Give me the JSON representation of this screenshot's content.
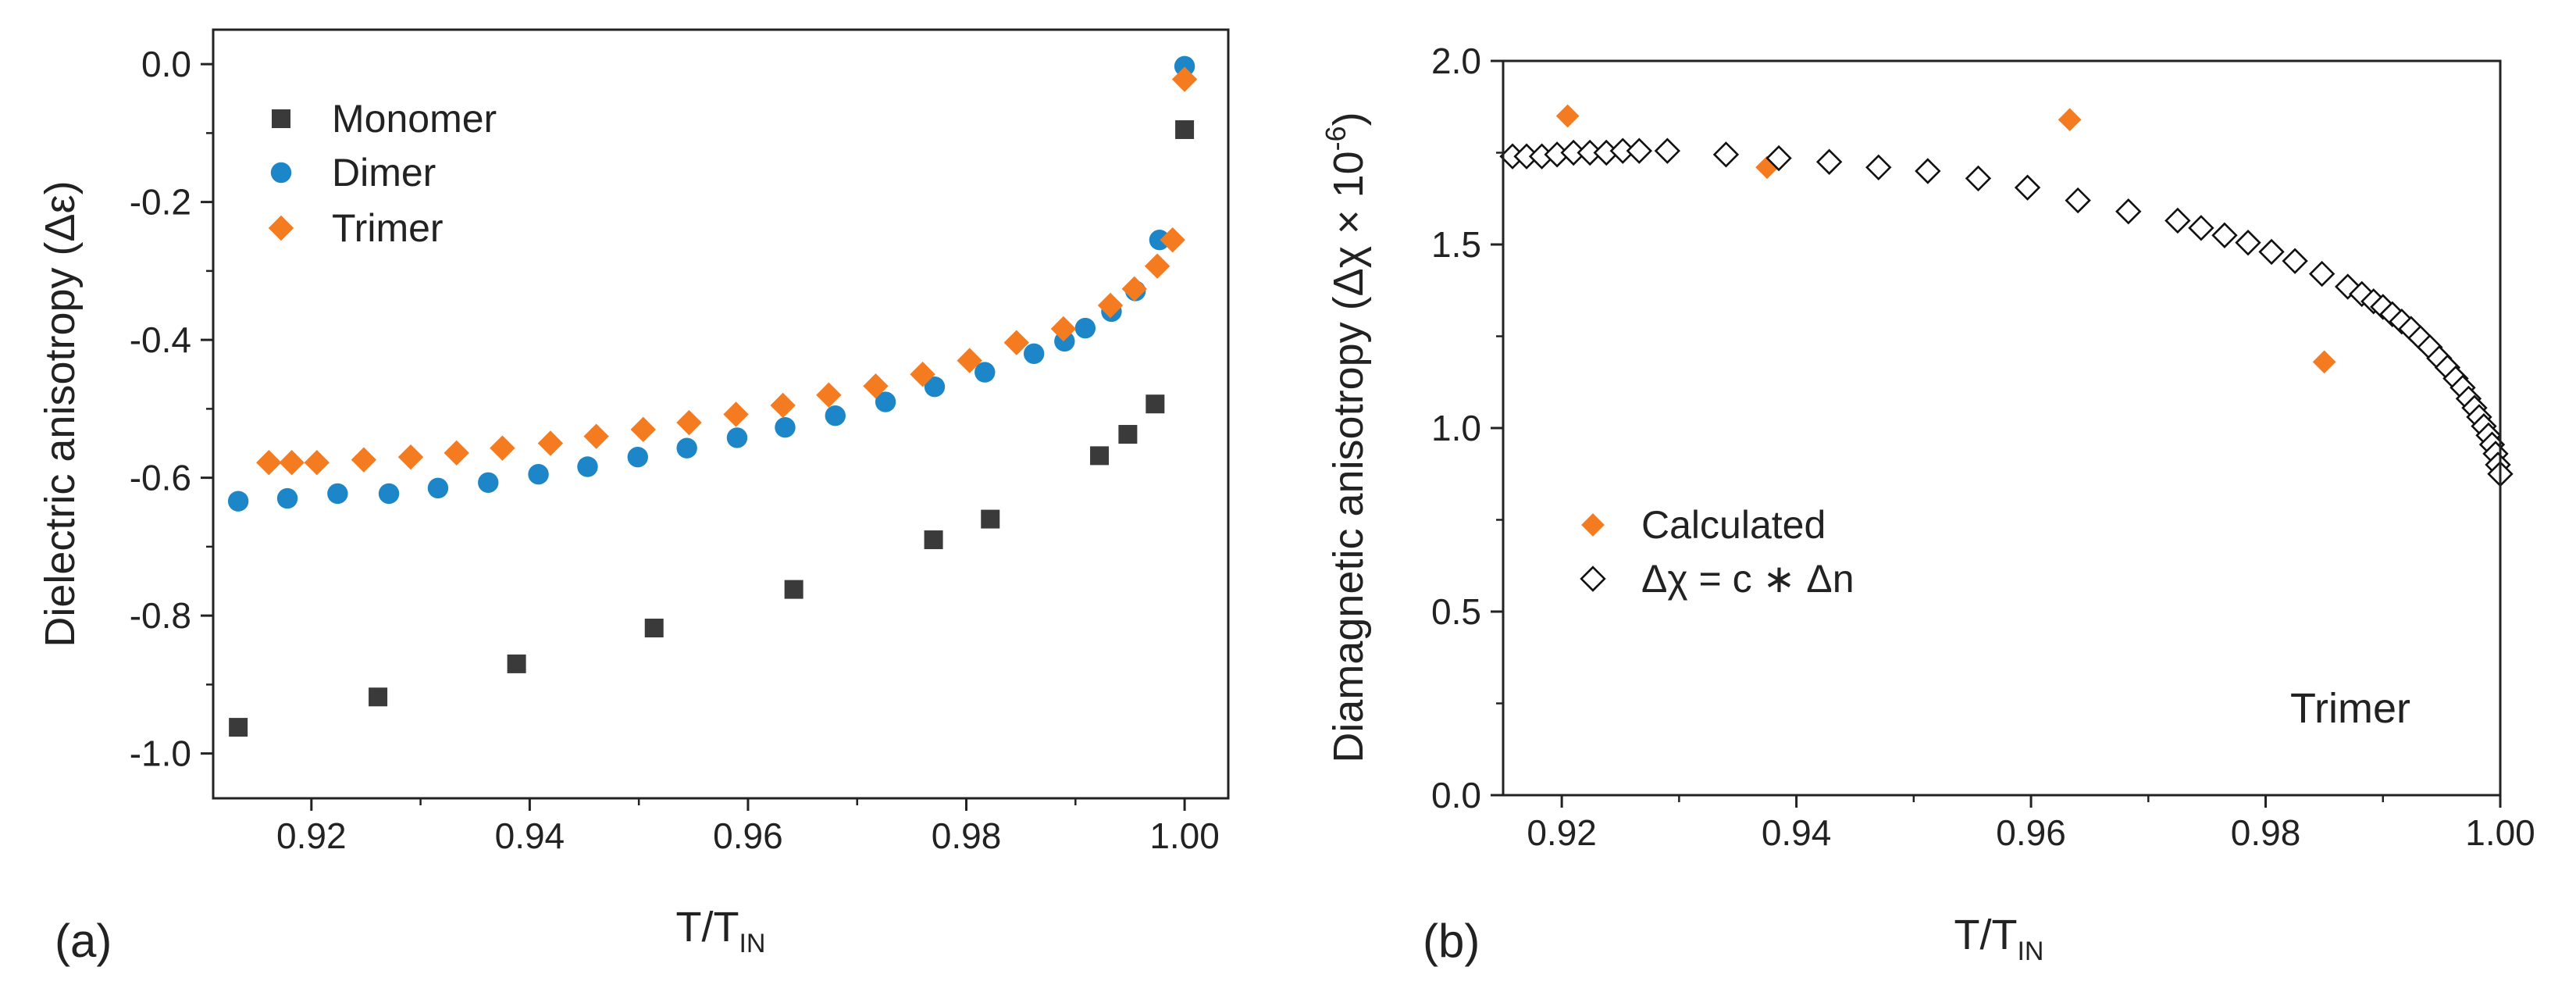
{
  "chart_data": [
    {
      "type": "scatter",
      "panel_label": "(a)",
      "xlabel_main": "T/T",
      "xlabel_sub": "IN",
      "ylabel": "Dielectric anisotropy (Δε)",
      "xlim": [
        0.911,
        1.004
      ],
      "ylim": [
        -1.065,
        0.05
      ],
      "xticks": [
        0.92,
        0.94,
        0.96,
        0.98,
        1.0
      ],
      "xtick_labels": [
        "0.92",
        "0.94",
        "0.96",
        "0.98",
        "1.00"
      ],
      "yticks": [
        -1.0,
        -0.8,
        -0.6,
        -0.4,
        -0.2,
        0.0
      ],
      "ytick_labels": [
        "-1.0",
        "-0.8",
        "-0.6",
        "-0.4",
        "-0.2",
        "0.0"
      ],
      "legend_position": "top-left",
      "series": [
        {
          "name": "Monomer",
          "marker": "square",
          "color": "#3a3a3a",
          "x": [
            0.9133,
            0.9261,
            0.9388,
            0.9514,
            0.9642,
            0.977,
            0.9822,
            0.9922,
            0.9948,
            0.9973,
            1.0
          ],
          "y": [
            -0.962,
            -0.918,
            -0.87,
            -0.818,
            -0.762,
            -0.69,
            -0.66,
            -0.568,
            -0.537,
            -0.493,
            -0.095
          ]
        },
        {
          "name": "Dimer",
          "marker": "circle",
          "color": "#1c86c8",
          "x": [
            0.9133,
            0.9178,
            0.9224,
            0.9271,
            0.9316,
            0.9362,
            0.9408,
            0.9453,
            0.9499,
            0.9544,
            0.959,
            0.9634,
            0.968,
            0.9726,
            0.9771,
            0.9817,
            0.9862,
            0.989,
            0.9909,
            0.9933,
            0.9955,
            0.9977,
            1.0
          ],
          "y": [
            -0.634,
            -0.63,
            -0.623,
            -0.623,
            -0.615,
            -0.607,
            -0.595,
            -0.584,
            -0.57,
            -0.557,
            -0.542,
            -0.527,
            -0.51,
            -0.49,
            -0.468,
            -0.447,
            -0.42,
            -0.402,
            -0.383,
            -0.359,
            -0.329,
            -0.255,
            -0.003
          ]
        },
        {
          "name": "Trimer",
          "marker": "diamond",
          "color": "#f47b20",
          "x": [
            0.9161,
            0.9182,
            0.9205,
            0.9248,
            0.9291,
            0.9333,
            0.9375,
            0.9419,
            0.9461,
            0.9504,
            0.9546,
            0.9589,
            0.9632,
            0.9674,
            0.9717,
            0.976,
            0.9803,
            0.9846,
            0.9889,
            0.9932,
            0.9954,
            0.9975,
            0.9989,
            1.0
          ],
          "y": [
            -0.578,
            -0.578,
            -0.578,
            -0.574,
            -0.57,
            -0.564,
            -0.557,
            -0.55,
            -0.54,
            -0.53,
            -0.52,
            -0.508,
            -0.495,
            -0.48,
            -0.467,
            -0.45,
            -0.43,
            -0.404,
            -0.384,
            -0.35,
            -0.326,
            -0.293,
            -0.255,
            -0.022
          ]
        }
      ]
    },
    {
      "type": "scatter",
      "panel_label": "(b)",
      "xlabel_main": "T/T",
      "xlabel_sub": "IN",
      "ylabel_main": "Diamagnetic anisotropy (Δχ × 10",
      "ylabel_sup": "-6",
      "ylabel_end": ")",
      "xlim": [
        0.915,
        1.0
      ],
      "ylim": [
        0.0,
        2.0
      ],
      "xticks": [
        0.92,
        0.94,
        0.96,
        0.98,
        1.0
      ],
      "xtick_labels": [
        "0.92",
        "0.94",
        "0.96",
        "0.98",
        "1.00"
      ],
      "yticks": [
        0.0,
        0.5,
        1.0,
        1.5,
        2.0
      ],
      "ytick_labels": [
        "0.0",
        "0.5",
        "1.0",
        "1.5",
        "2.0"
      ],
      "legend_position": "center-left",
      "annotation": "Trimer",
      "series": [
        {
          "name": "Calculated",
          "marker": "diamond",
          "color": "#f47b20",
          "x": [
            0.9205,
            0.9375,
            0.9633,
            0.985
          ],
          "y": [
            1.85,
            1.71,
            1.84,
            1.18
          ]
        },
        {
          "name": "Δχ = c ∗ Δn",
          "marker": "diamond-open",
          "color": "#111111",
          "x": [
            0.9158,
            0.917,
            0.9183,
            0.9196,
            0.921,
            0.9224,
            0.9238,
            0.9252,
            0.9266,
            0.929,
            0.934,
            0.9385,
            0.9428,
            0.947,
            0.9512,
            0.9555,
            0.9597,
            0.964,
            0.9683,
            0.9725,
            0.9745,
            0.9765,
            0.9785,
            0.9805,
            0.9825,
            0.9848,
            0.987,
            0.9882,
            0.9892,
            0.99,
            0.9908,
            0.9916,
            0.9924,
            0.9932,
            0.994,
            0.9948,
            0.9955,
            0.9962,
            0.9968,
            0.9973,
            0.9978,
            0.9982,
            0.9986,
            0.999,
            0.9993,
            0.9996,
            0.9998,
            1.0
          ],
          "y": [
            1.74,
            1.74,
            1.74,
            1.745,
            1.75,
            1.75,
            1.75,
            1.755,
            1.755,
            1.755,
            1.745,
            1.735,
            1.725,
            1.71,
            1.7,
            1.68,
            1.655,
            1.62,
            1.59,
            1.565,
            1.545,
            1.525,
            1.505,
            1.48,
            1.455,
            1.42,
            1.385,
            1.365,
            1.345,
            1.33,
            1.31,
            1.29,
            1.27,
            1.245,
            1.22,
            1.19,
            1.165,
            1.135,
            1.11,
            1.08,
            1.055,
            1.03,
            1.005,
            0.98,
            0.955,
            0.93,
            0.9,
            0.875
          ]
        }
      ]
    }
  ]
}
